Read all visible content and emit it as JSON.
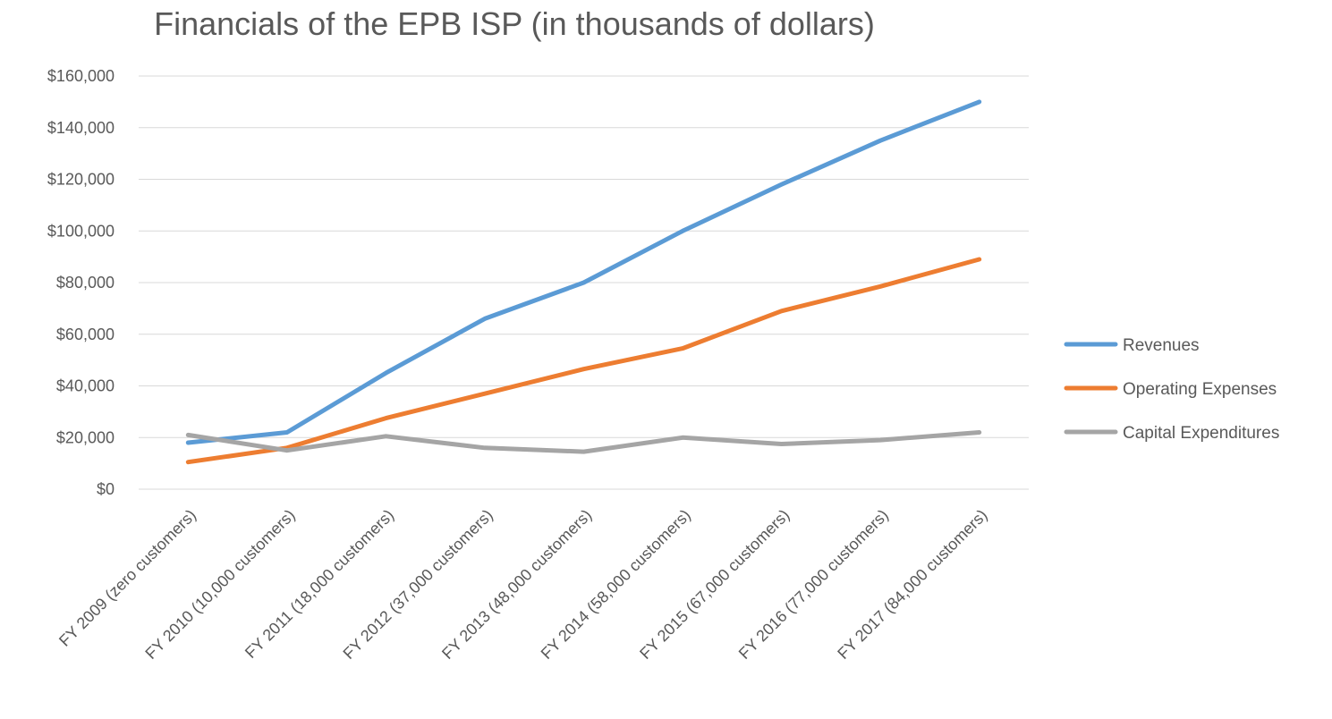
{
  "chart_data": {
    "type": "line",
    "title": "Financials of the EPB ISP (in thousands of dollars)",
    "xlabel": "",
    "ylabel": "",
    "categories": [
      "FY 2009 (zero customers)",
      "FY 2010 (10,000 customers)",
      "FY 2011 (18,000 customers)",
      "FY 2012 (37,000 customers)",
      "FY 2013 (48,000 customers)",
      "FY 2014 (58,000 customers)",
      "FY 2015 (67,000 customers)",
      "FY 2016 (77,000 customers)",
      "FY 2017 (84,000 customers)"
    ],
    "ylim": [
      0,
      160000
    ],
    "yticks": [
      0,
      20000,
      40000,
      60000,
      80000,
      100000,
      120000,
      140000,
      160000
    ],
    "ytick_labels": [
      "$0",
      "$20,000",
      "$40,000",
      "$60,000",
      "$80,000",
      "$100,000",
      "$120,000",
      "$140,000",
      "$160,000"
    ],
    "grid": true,
    "legend_position": "right",
    "series": [
      {
        "name": "Revenues",
        "color": "#5B9BD5",
        "values": [
          18000,
          22000,
          45000,
          66000,
          80000,
          100000,
          118000,
          135000,
          150000
        ]
      },
      {
        "name": "Operating Expenses",
        "color": "#ED7D31",
        "values": [
          10500,
          16000,
          27500,
          37000,
          46500,
          54500,
          69000,
          78500,
          89000
        ]
      },
      {
        "name": "Capital Expenditures",
        "color": "#A5A5A5",
        "values": [
          21000,
          15000,
          20500,
          16000,
          14500,
          20000,
          17500,
          19000,
          22000
        ]
      }
    ]
  }
}
